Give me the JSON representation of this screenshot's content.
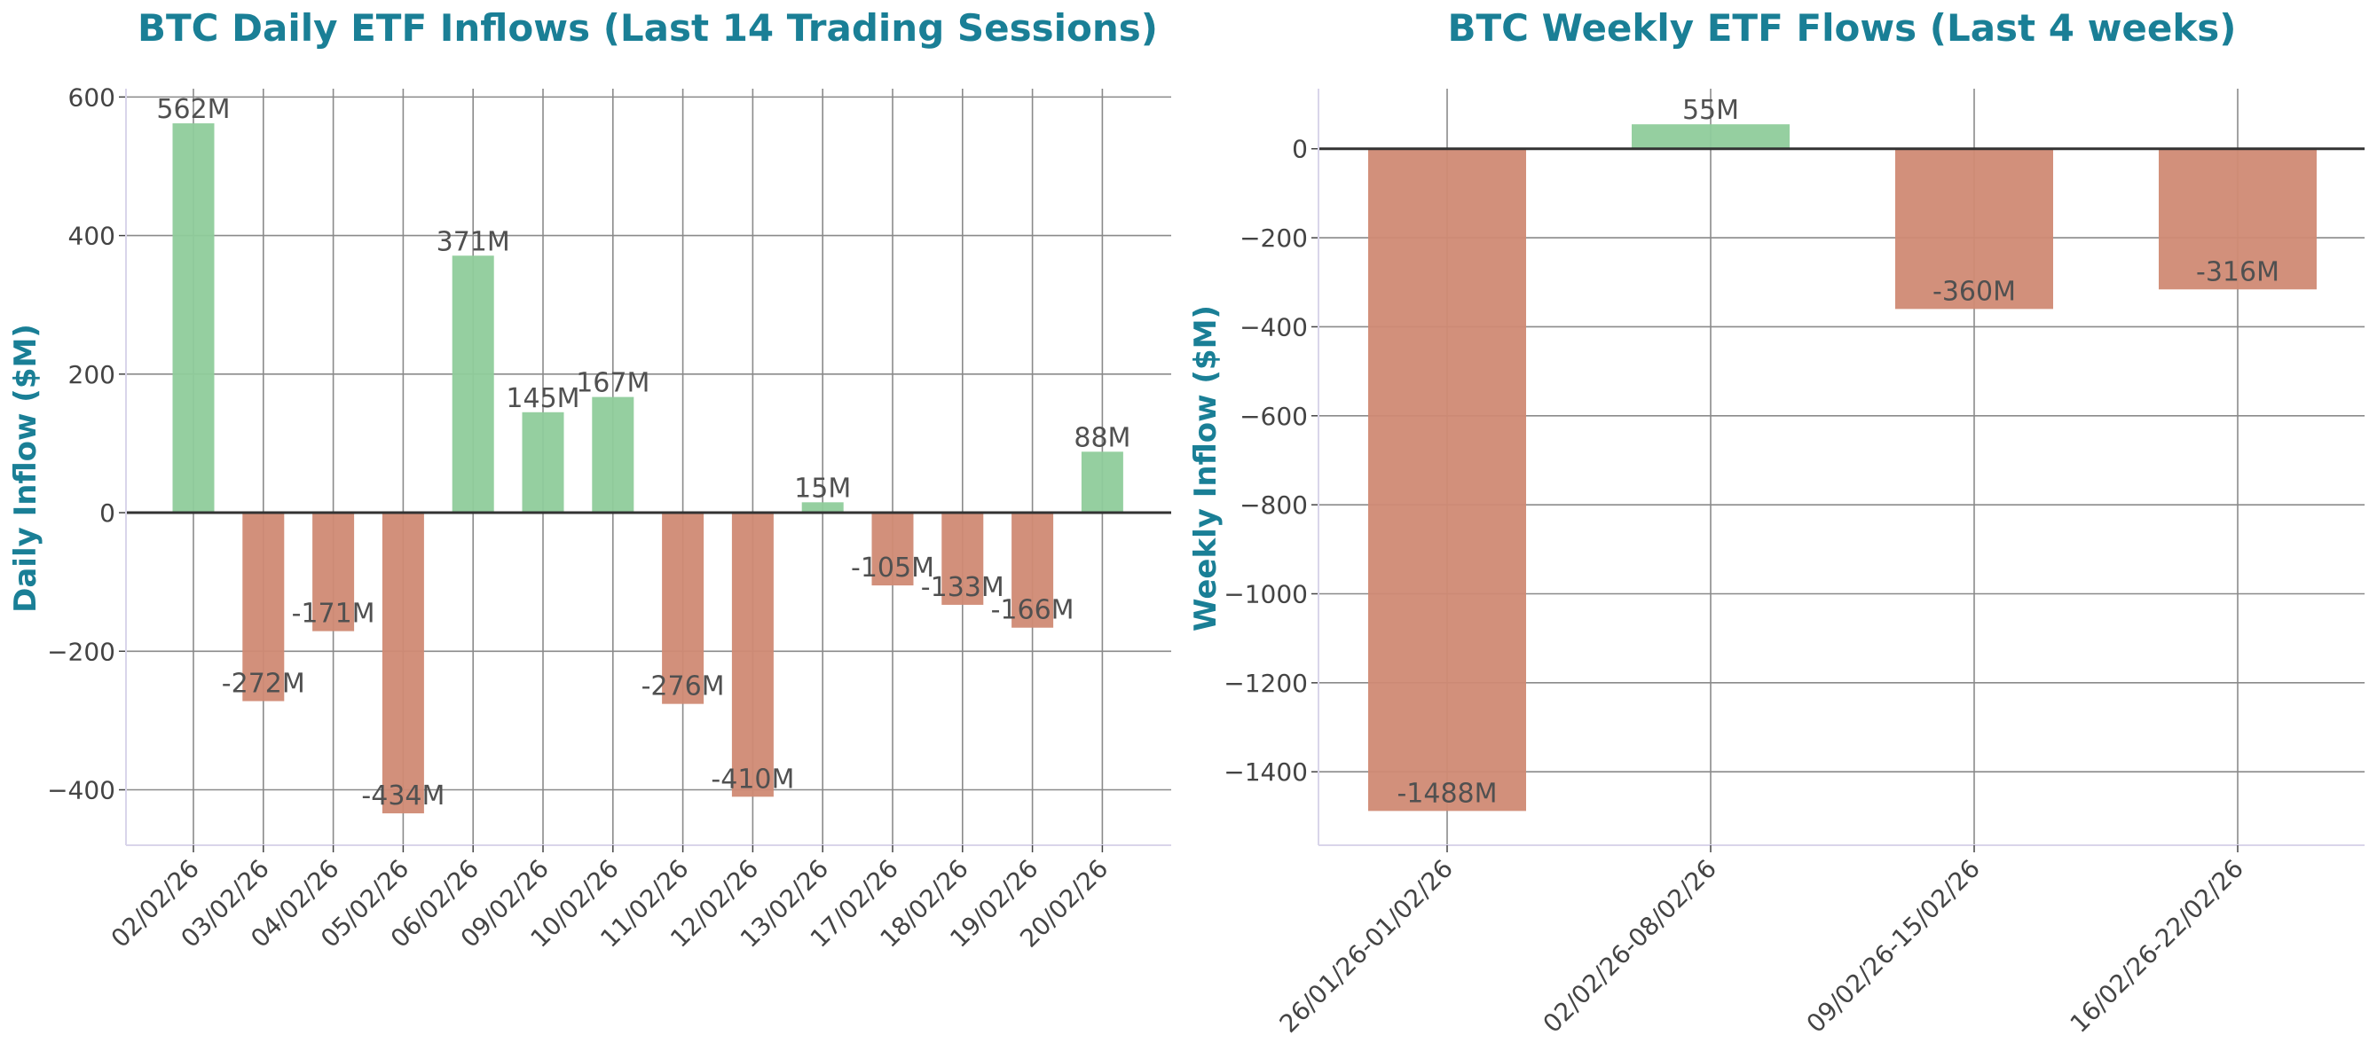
{
  "colors": {
    "positive": "#8fcc9b",
    "negative": "#d08a74",
    "title": "#1a7f96"
  },
  "chart_data": [
    {
      "type": "bar",
      "title": "BTC Daily ETF Inflows (Last 14 Trading Sessions)",
      "xlabel": "",
      "ylabel": "Daily Inflow ($M)",
      "categories": [
        "02/02/26",
        "03/02/26",
        "04/02/26",
        "05/02/26",
        "06/02/26",
        "09/02/26",
        "10/02/26",
        "11/02/26",
        "12/02/26",
        "13/02/26",
        "17/02/26",
        "18/02/26",
        "19/02/26",
        "20/02/26"
      ],
      "values": [
        562,
        -272,
        -171,
        -434,
        371,
        145,
        167,
        -276,
        -410,
        15,
        -105,
        -133,
        -166,
        88
      ],
      "data_labels": [
        "562M",
        "-272M",
        "-171M",
        "-434M",
        "371M",
        "145M",
        "167M",
        "-276M",
        "-410M",
        "15M",
        "-105M",
        "-133M",
        "-166M",
        "88M"
      ],
      "ylim": [
        -480,
        612
      ],
      "yticks": [
        600,
        400,
        200,
        0,
        -200,
        -400
      ],
      "ytick_labels": [
        "600",
        "400",
        "200",
        "0",
        "−200",
        "−400"
      ],
      "grid": true
    },
    {
      "type": "bar",
      "title": "BTC Weekly ETF Flows (Last 4 weeks)",
      "xlabel": "",
      "ylabel": "Weekly Inflow ($M)",
      "categories": [
        "26/01/26-01/02/26",
        "02/02/26-08/02/26",
        "09/02/26-15/02/26",
        "16/02/26-22/02/26"
      ],
      "values": [
        -1488,
        55,
        -360,
        -316
      ],
      "data_labels": [
        "-1488M",
        "55M",
        "-360M",
        "-316M"
      ],
      "ylim": [
        -1565,
        135
      ],
      "yticks": [
        0,
        -200,
        -400,
        -600,
        -800,
        -1000,
        -1200,
        -1400
      ],
      "ytick_labels": [
        "0",
        "−200",
        "−400",
        "−600",
        "−800",
        "−1000",
        "−1200",
        "−1400"
      ],
      "grid": true
    }
  ]
}
